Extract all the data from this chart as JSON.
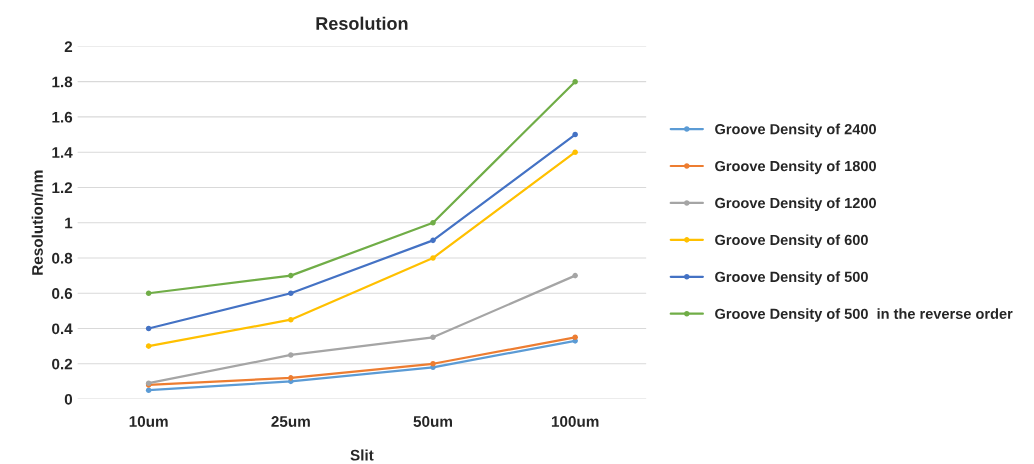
{
  "chart_data": {
    "type": "line",
    "title": "Resolution",
    "xlabel": "Slit",
    "ylabel": "Resolution/nm",
    "categories": [
      "10um",
      "25um",
      "50um",
      "100um"
    ],
    "series": [
      {
        "name": "Groove Density of 2400",
        "color": "#5b9bd5",
        "values": [
          0.05,
          0.1,
          0.18,
          0.33
        ]
      },
      {
        "name": "Groove Density of 1800",
        "color": "#ed7d31",
        "values": [
          0.08,
          0.12,
          0.2,
          0.35
        ]
      },
      {
        "name": "Groove Density of 1200",
        "color": "#a5a5a5",
        "values": [
          0.09,
          0.25,
          0.35,
          0.7
        ]
      },
      {
        "name": "Groove Density of 600",
        "color": "#ffc000",
        "values": [
          0.3,
          0.45,
          0.8,
          1.4
        ]
      },
      {
        "name": "Groove Density of 500",
        "color": "#4472c4",
        "values": [
          0.4,
          0.6,
          0.9,
          1.5
        ]
      },
      {
        "name": "Groove Density of 500  in the reverse order",
        "color": "#70ad47",
        "values": [
          0.6,
          0.7,
          1.0,
          1.8
        ]
      }
    ],
    "ylim": [
      0,
      2
    ],
    "yticks": [
      0,
      0.2,
      0.4,
      0.6,
      0.8,
      1,
      1.2,
      1.4,
      1.6,
      1.8,
      2
    ],
    "grid": "y",
    "legend": "right",
    "marker": "circle",
    "line_style": "solid"
  }
}
